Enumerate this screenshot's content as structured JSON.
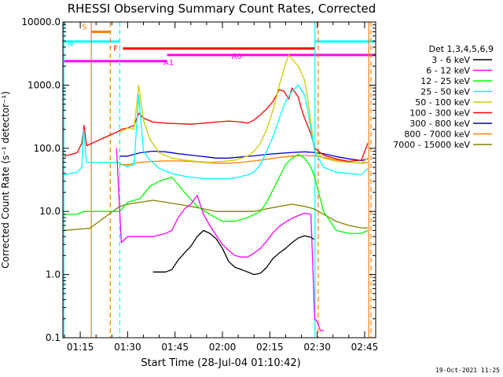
{
  "chart_data": {
    "type": "line",
    "title": "RHESSI Observing Summary Count Rates, Corrected",
    "xlabel": "Start Time (28-Jul-04 01:10:42)",
    "ylabel": "Corrected Count Rate (s⁻¹ detector⁻¹)",
    "yscale": "log",
    "ylim": [
      0.1,
      10000
    ],
    "xlim_minutes": [
      69.5,
      168.5
    ],
    "y_tick_labels": [
      "0.1",
      "1.0",
      "10.0",
      "100.0",
      "1000.0",
      "10000.0"
    ],
    "y_tick_values": [
      0.1,
      1,
      10,
      100,
      1000,
      10000
    ],
    "x_tick_labels": [
      "01:15",
      "01:30",
      "01:45",
      "02:00",
      "02:15",
      "02:30",
      "02:45"
    ],
    "x_tick_minutes": [
      75,
      90,
      105,
      120,
      135,
      150,
      165
    ],
    "grid": false,
    "legend_title": "Det 1,3,4,5,6,9",
    "legend_position": "right",
    "timestamp": "19-Oct-2021 11:25",
    "flag_bars": [
      {
        "label": "S",
        "color": "#ff7f00",
        "start": 78.5,
        "end": 84.5,
        "level": 7000
      },
      {
        "label": "N",
        "color": "#00ffff",
        "start": 69.5,
        "end": 87.5,
        "level": 4900
      },
      {
        "label": "N",
        "color": "#00ffff",
        "start": 149.3,
        "end": 168.5,
        "level": 4900
      },
      {
        "label": "F",
        "color": "#ff0000",
        "start": 88.5,
        "end": 149.3,
        "level": 3800
      },
      {
        "label": "A0",
        "color": "#ff00ff",
        "start": 102.5,
        "end": 168.5,
        "level": 3000
      },
      {
        "label": "A1",
        "color": "#ff00ff",
        "start": 69.5,
        "end": 102.5,
        "level": 2400
      }
    ],
    "vertical_lines": [
      {
        "x": 69.8,
        "color": "#00ffff",
        "style": "solid"
      },
      {
        "x": 78.5,
        "color": "#ff7f00",
        "style": "solid"
      },
      {
        "x": 84.5,
        "color": "#ff7f00",
        "style": "dashed"
      },
      {
        "x": 87.5,
        "color": "#00ffff",
        "style": "dashed"
      },
      {
        "x": 149.3,
        "color": "#00ffff",
        "style": "solid"
      },
      {
        "x": 150.3,
        "color": "#ff7f00",
        "style": "dashed"
      },
      {
        "x": 166.3,
        "color": "#ff7f00",
        "style": "solid"
      },
      {
        "x": 167.0,
        "color": "#ff7f00",
        "style": "dashed"
      }
    ],
    "series": [
      {
        "name": "3 - 6 keV",
        "color": "#000000",
        "x": [
          98,
          102,
          104,
          106,
          108,
          110,
          112,
          114,
          116,
          118,
          120,
          122,
          124,
          126,
          128,
          130,
          132,
          134,
          136,
          138,
          140,
          142,
          144,
          146,
          148,
          149
        ],
        "y": [
          1.1,
          1.1,
          1.2,
          1.7,
          2.2,
          2.8,
          4.0,
          5.0,
          4.5,
          3.7,
          2.6,
          1.6,
          1.3,
          1.2,
          1.1,
          1.0,
          1.05,
          1.3,
          1.8,
          2.2,
          2.6,
          3.2,
          3.8,
          4.1,
          3.9,
          3.6
        ]
      },
      {
        "name": "6 - 12 keV",
        "color": "#ff00ff",
        "x": [
          86.5,
          88,
          90,
          94,
          98,
          102,
          104,
          106,
          108,
          110,
          112,
          114,
          116,
          118,
          120,
          122,
          124,
          126,
          128,
          130,
          132,
          134,
          136,
          138,
          140,
          142,
          144,
          146,
          148,
          149.2,
          150,
          151,
          152
        ],
        "y": [
          100,
          3.2,
          4.0,
          4.0,
          4.0,
          4.5,
          5.0,
          8.0,
          11,
          13,
          18,
          9,
          6,
          4.2,
          3.0,
          2.4,
          2.0,
          1.9,
          1.9,
          2.2,
          2.6,
          3.4,
          4.6,
          5.8,
          6.8,
          7.8,
          8.6,
          9.4,
          9.0,
          0.2,
          0.18,
          0.13,
          0.13
        ]
      },
      {
        "name": "12 - 25 keV",
        "color": "#00ff00",
        "x": [
          70,
          72,
          74,
          76,
          78,
          87.5,
          90,
          94,
          97,
          100,
          104,
          108,
          112,
          116,
          120,
          124,
          128,
          132,
          134,
          136,
          138,
          140,
          142,
          144,
          146,
          148,
          149.2,
          152,
          156,
          160,
          164,
          166
        ],
        "y": [
          9,
          9,
          9,
          10,
          10,
          10,
          14,
          16,
          25,
          30,
          35,
          20,
          12,
          9,
          7,
          7,
          8,
          10,
          14,
          22,
          35,
          55,
          70,
          80,
          70,
          50,
          35,
          10,
          5,
          4.5,
          4.5,
          5
        ]
      },
      {
        "name": "25 - 50 keV",
        "color": "#00ffff",
        "x": [
          70,
          72,
          74,
          75.5,
          76,
          77,
          87.5,
          88,
          90,
          92,
          93.5,
          95,
          97,
          100,
          104,
          108,
          112,
          116,
          120,
          124,
          128,
          130,
          132,
          134,
          136,
          138,
          140,
          142,
          144,
          146,
          147,
          148,
          149.2,
          152,
          156,
          160,
          164,
          166
        ],
        "y": [
          38,
          40,
          42,
          50,
          200,
          60,
          60,
          55,
          52,
          55,
          700,
          90,
          65,
          48,
          40,
          36,
          34,
          33,
          33,
          34,
          38,
          42,
          55,
          90,
          150,
          300,
          550,
          800,
          1000,
          700,
          400,
          200,
          90,
          50,
          42,
          40,
          38,
          48
        ]
      },
      {
        "name": "50 - 100 keV",
        "color": "#cccc00",
        "x": [
          87.5,
          90,
          92,
          93.5,
          95,
          97,
          100,
          104,
          108,
          112,
          116,
          120,
          124,
          128,
          130,
          132,
          134,
          136,
          138,
          140,
          141,
          142,
          144,
          146,
          147,
          148,
          149.2,
          152,
          156,
          160,
          164,
          166
        ],
        "y": [
          180,
          210,
          200,
          1000,
          280,
          140,
          85,
          70,
          65,
          62,
          60,
          62,
          65,
          75,
          90,
          120,
          200,
          400,
          1000,
          2200,
          3000,
          2600,
          2000,
          1200,
          600,
          250,
          90,
          70,
          62,
          60,
          58,
          70
        ]
      },
      {
        "name": "100 - 300 keV",
        "color": "#ff0000",
        "x": [
          70,
          72,
          74,
          75.5,
          76.2,
          77,
          87.5,
          88,
          90,
          92,
          93.5,
          95,
          98,
          102,
          106,
          110,
          114,
          118,
          122,
          126,
          128,
          130,
          132,
          134,
          136,
          138,
          139.5,
          141,
          142,
          144,
          145,
          146,
          148,
          149.2,
          152,
          156,
          160,
          164,
          166
        ],
        "y": [
          75,
          80,
          85,
          120,
          230,
          110,
          190,
          200,
          210,
          230,
          360,
          300,
          260,
          250,
          245,
          240,
          250,
          260,
          270,
          260,
          250,
          280,
          340,
          420,
          550,
          850,
          800,
          600,
          900,
          650,
          420,
          300,
          170,
          100,
          78,
          68,
          62,
          65,
          120
        ]
      },
      {
        "name": "300 - 800 keV",
        "color": "#0000cc",
        "x": [
          87.5,
          90,
          94,
          98,
          102,
          106,
          110,
          114,
          118,
          122,
          126,
          130,
          134,
          138,
          142,
          146,
          149,
          152,
          156,
          160,
          164,
          166
        ],
        "y": [
          75,
          75,
          85,
          90,
          88,
          82,
          78,
          74,
          70,
          70,
          73,
          76,
          80,
          83,
          86,
          88,
          86,
          82,
          74,
          68,
          64,
          68
        ]
      },
      {
        "name": "800 - 7000 keV",
        "color": "#ff7f00",
        "x": [
          87.5,
          90,
          94,
          98,
          102,
          106,
          110,
          114,
          118,
          122,
          126,
          130,
          134,
          138,
          142,
          146,
          149,
          152,
          156,
          160,
          164,
          166
        ],
        "y": [
          55,
          55,
          60,
          62,
          63,
          63,
          62,
          60,
          58,
          58,
          60,
          63,
          67,
          72,
          75,
          77,
          76,
          72,
          65,
          60,
          58,
          60
        ]
      },
      {
        "name": "7000 - 15000 keV",
        "color": "#808000",
        "x": [
          70,
          72,
          74,
          76,
          78,
          87.5,
          90,
          94,
          98,
          102,
          106,
          110,
          114,
          118,
          122,
          126,
          130,
          134,
          138,
          142,
          146,
          149,
          152,
          156,
          160,
          164,
          166
        ],
        "y": [
          5.0,
          5.1,
          5.2,
          5.3,
          5.4,
          12,
          13,
          14,
          15,
          14,
          13,
          12,
          11,
          10,
          10,
          10,
          10,
          11,
          12,
          13,
          12,
          11,
          9,
          7,
          6,
          5.5,
          5.5
        ]
      }
    ]
  }
}
